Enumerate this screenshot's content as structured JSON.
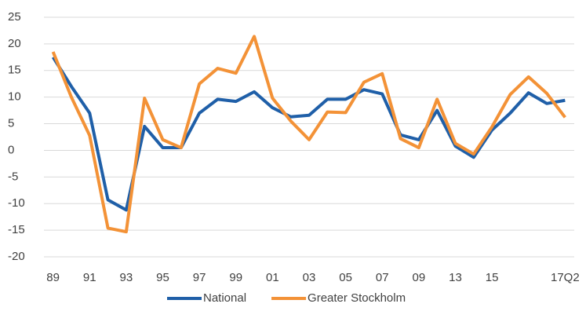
{
  "chart_data": {
    "type": "line",
    "categories": [
      "89",
      null,
      "91",
      null,
      "93",
      null,
      "95",
      null,
      "97",
      null,
      "99",
      null,
      "01",
      null,
      "03",
      null,
      "05",
      null,
      "07",
      null,
      "09",
      null,
      "13",
      null,
      "15",
      null,
      null,
      null,
      "17Q2"
    ],
    "series": [
      {
        "name": "National",
        "color": "#1f5fa8",
        "values": [
          17.5,
          12,
          7,
          -9.3,
          -11.2,
          4.5,
          0.5,
          0.5,
          7,
          9.6,
          9.2,
          11,
          8,
          6.3,
          6.6,
          9.6,
          9.6,
          11.4,
          10.6,
          2.9,
          2,
          7.5,
          0.8,
          -1.3,
          3.8,
          7,
          10.8,
          8.8,
          9.4
        ]
      },
      {
        "name": "Greater Stockholm",
        "color": "#f39237",
        "values": [
          18.5,
          10,
          2.8,
          -14.6,
          -15.3,
          9.8,
          2,
          0.5,
          12.5,
          15.4,
          14.5,
          21.4,
          9.8,
          5.5,
          2,
          7.2,
          7.1,
          12.8,
          14.4,
          2.2,
          0.5,
          9.6,
          1.3,
          -0.7,
          4.4,
          10.5,
          13.8,
          10.7,
          6.2
        ]
      }
    ],
    "ylim": [
      -20,
      25
    ],
    "yticks": [
      -20,
      -15,
      -10,
      -5,
      0,
      5,
      10,
      15,
      20,
      25
    ],
    "grid": true,
    "legend": "bottom"
  }
}
